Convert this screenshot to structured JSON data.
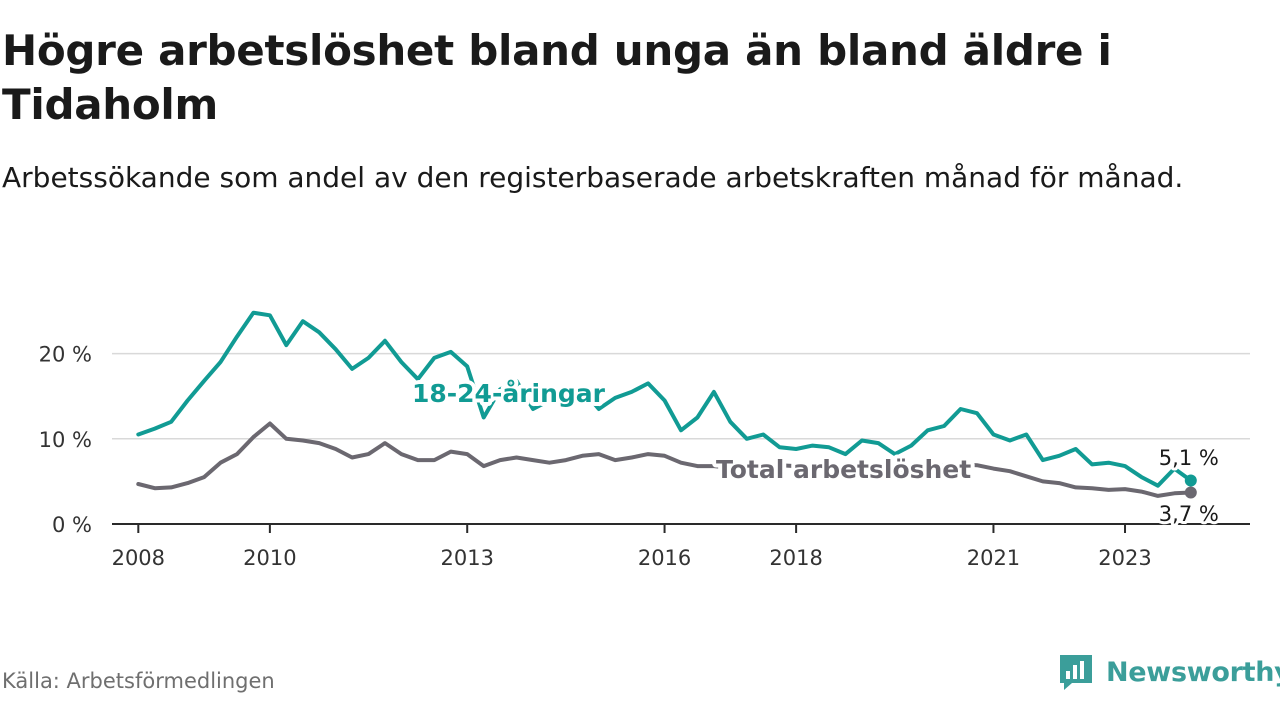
{
  "header": {
    "title": "Högre arbetslöshet bland unga än bland äldre i Tidaholm",
    "subtitle": "Arbetssökande som andel av den registerbaserade arbetskraften månad för månad."
  },
  "footer": {
    "source": "Källa: Arbetsförmedlingen",
    "brand": "Newsworthy"
  },
  "colors": {
    "youth": "#119b94",
    "total": "#6b6870",
    "grid": "#d9d9d9",
    "axis": "#2a2a2a",
    "brand": "#3b9e9a"
  },
  "chart_data": {
    "type": "line",
    "title": "Högre arbetslöshet bland unga än bland äldre i Tidaholm",
    "xlabel": "",
    "ylabel": "",
    "ylim": [
      0,
      25
    ],
    "xlim": [
      2007.6,
      2024.9
    ],
    "y_ticks": [
      {
        "value": 0,
        "label": "0 %"
      },
      {
        "value": 10,
        "label": "10 %"
      },
      {
        "value": 20,
        "label": "20 %"
      }
    ],
    "x_ticks": [
      {
        "value": 2008,
        "label": "2008"
      },
      {
        "value": 2010,
        "label": "2010"
      },
      {
        "value": 2013,
        "label": "2013"
      },
      {
        "value": 2016,
        "label": "2016"
      },
      {
        "value": 2018,
        "label": "2018"
      },
      {
        "value": 2021,
        "label": "2021"
      },
      {
        "value": 2023,
        "label": "2023"
      }
    ],
    "grid": true,
    "series": [
      {
        "name": "18-24-åringar",
        "label": "18-24-åringar",
        "end_label": "5,1 %",
        "x": [
          2008.0,
          2008.25,
          2008.5,
          2008.75,
          2009.0,
          2009.25,
          2009.5,
          2009.75,
          2010.0,
          2010.25,
          2010.5,
          2010.75,
          2011.0,
          2011.25,
          2011.5,
          2011.75,
          2012.0,
          2012.25,
          2012.5,
          2012.75,
          2013.0,
          2013.25,
          2013.5,
          2013.75,
          2014.0,
          2014.25,
          2014.5,
          2014.75,
          2015.0,
          2015.25,
          2015.5,
          2015.75,
          2016.0,
          2016.25,
          2016.5,
          2016.75,
          2017.0,
          2017.25,
          2017.5,
          2017.75,
          2018.0,
          2018.25,
          2018.5,
          2018.75,
          2019.0,
          2019.25,
          2019.5,
          2019.75,
          2020.0,
          2020.25,
          2020.5,
          2020.75,
          2021.0,
          2021.25,
          2021.5,
          2021.75,
          2022.0,
          2022.25,
          2022.5,
          2022.75,
          2023.0,
          2023.25,
          2023.5,
          2023.75,
          2024.0
        ],
        "values": [
          10.5,
          11.2,
          12.0,
          14.5,
          16.8,
          19.0,
          22.0,
          24.8,
          24.5,
          21.0,
          23.8,
          22.5,
          20.5,
          18.2,
          19.5,
          21.5,
          19.0,
          17.0,
          19.5,
          20.2,
          18.5,
          12.5,
          15.8,
          16.8,
          13.5,
          14.5,
          15.5,
          15.8,
          13.5,
          14.8,
          15.5,
          16.5,
          14.5,
          11.0,
          12.5,
          15.5,
          12.0,
          10.0,
          10.5,
          9.0,
          8.8,
          9.2,
          9.0,
          8.2,
          9.8,
          9.5,
          8.2,
          9.2,
          11.0,
          11.5,
          13.5,
          13.0,
          10.5,
          9.8,
          10.5,
          7.5,
          8.0,
          8.8,
          7.0,
          7.2,
          6.8,
          5.5,
          4.5,
          6.5,
          5.1
        ]
      },
      {
        "name": "Total arbetslöshet",
        "label": "Total arbetslöshet",
        "end_label": "3,7 %",
        "x": [
          2008.0,
          2008.25,
          2008.5,
          2008.75,
          2009.0,
          2009.25,
          2009.5,
          2009.75,
          2010.0,
          2010.25,
          2010.5,
          2010.75,
          2011.0,
          2011.25,
          2011.5,
          2011.75,
          2012.0,
          2012.25,
          2012.5,
          2012.75,
          2013.0,
          2013.25,
          2013.5,
          2013.75,
          2014.0,
          2014.25,
          2014.5,
          2014.75,
          2015.0,
          2015.25,
          2015.5,
          2015.75,
          2016.0,
          2016.25,
          2016.5,
          2016.75,
          2017.0,
          2017.25,
          2017.5,
          2017.75,
          2018.0,
          2018.25,
          2018.5,
          2018.75,
          2019.0,
          2019.25,
          2019.5,
          2019.75,
          2020.0,
          2020.25,
          2020.5,
          2020.75,
          2021.0,
          2021.25,
          2021.5,
          2021.75,
          2022.0,
          2022.25,
          2022.5,
          2022.75,
          2023.0,
          2023.25,
          2023.5,
          2023.75,
          2024.0
        ],
        "values": [
          4.7,
          4.2,
          4.3,
          4.8,
          5.5,
          7.2,
          8.2,
          10.2,
          11.8,
          10.0,
          9.8,
          9.5,
          8.8,
          7.8,
          8.2,
          9.5,
          8.2,
          7.5,
          7.5,
          8.5,
          8.2,
          6.8,
          7.5,
          7.8,
          7.5,
          7.2,
          7.5,
          8.0,
          8.2,
          7.5,
          7.8,
          8.2,
          8.0,
          7.2,
          6.8,
          6.8,
          6.6,
          6.4,
          6.8,
          6.9,
          6.8,
          6.6,
          6.5,
          6.4,
          6.6,
          6.3,
          6.2,
          6.4,
          6.8,
          6.9,
          7.0,
          6.9,
          6.5,
          6.2,
          5.6,
          5.0,
          4.8,
          4.3,
          4.2,
          4.0,
          4.1,
          3.8,
          3.3,
          3.6,
          3.7
        ]
      }
    ]
  }
}
